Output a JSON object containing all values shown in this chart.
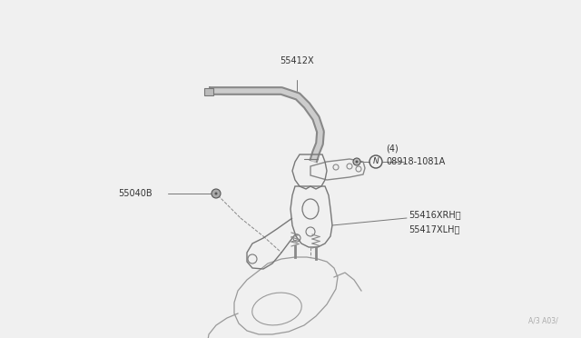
{
  "bg_color": "#f0f0f0",
  "line_color": "#555555",
  "text_color": "#333333",
  "bar_color": "#888888",
  "watermark": "A/3 A03/",
  "label_55412X": "55412X",
  "label_55040B": "55040B",
  "label_nut": "N08918-1081A",
  "label_nut2": "(4)",
  "label_rh": "55416XRH〉",
  "label_lh": "55417XLH〉",
  "font_size": 7.0
}
